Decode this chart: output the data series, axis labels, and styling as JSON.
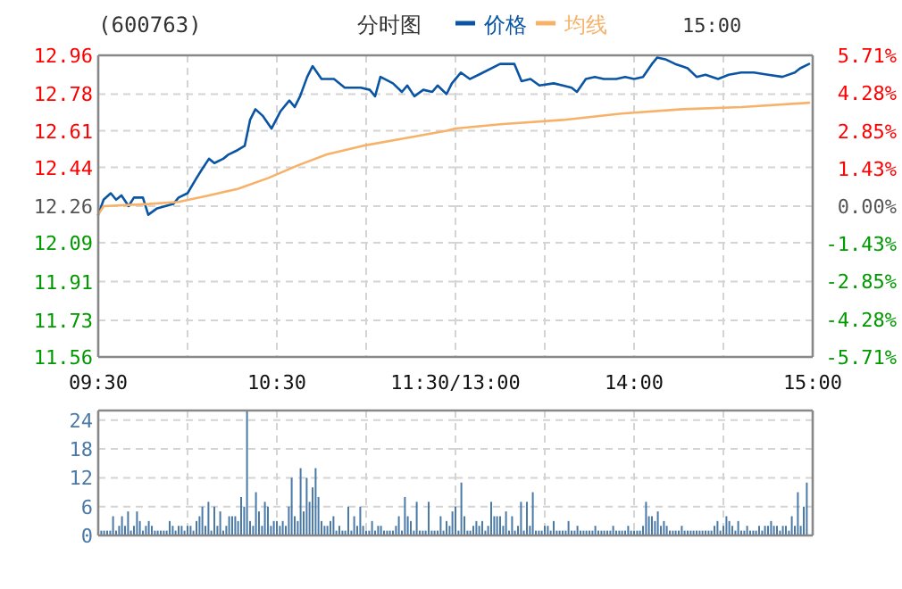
{
  "chart_data": [
    {
      "type": "line",
      "title": "(600763)",
      "subtitle": "分时图",
      "legend": "top",
      "grid": true,
      "xlim": [
        9.5,
        11.5
      ],
      "xticks": [
        {
          "value": 9.5,
          "label": "09:30"
        },
        {
          "value": 10,
          "label": null
        },
        {
          "value": 10.5,
          "label": "10:30"
        },
        {
          "value": 11,
          "label": null
        },
        {
          "value": 11.5,
          "label": "11:30/13:00"
        }
      ],
      "ylim": [
        11.56,
        12.96
      ],
      "yticks": [
        11.56,
        11.73,
        11.91,
        12.09,
        12.26,
        12.44,
        12.61,
        12.78,
        12.96
      ],
      "series": [
        {
          "name": "价格",
          "color": "#0a55a3",
          "x": [
            9.5,
            9.53,
            9.57,
            9.6,
            9.63,
            9.67,
            9.7,
            9.75,
            9.78,
            9.83,
            9.92,
            9.95,
            10,
            10.05,
            10.08,
            10.12,
            10.15,
            10.2,
            10.23,
            10.28,
            10.32,
            10.35,
            10.38,
            10.42,
            10.47,
            10.52,
            10.57,
            10.6,
            10.63,
            10.67,
            10.7,
            10.75,
            10.82,
            10.88,
            10.97,
            11.02,
            11.05,
            11.08,
            11.15,
            11.2,
            11.23,
            11.27,
            11.32,
            11.37,
            11.4,
            11.45,
            11.48,
            11.5
          ],
          "values": [
            12.22,
            12.29,
            12.32,
            12.29,
            12.31,
            12.26,
            12.3,
            12.3,
            12.22,
            12.25,
            12.27,
            12.3,
            12.32,
            12.39,
            12.43,
            12.48,
            12.46,
            12.48,
            12.5,
            12.52,
            12.54,
            12.66,
            12.71,
            12.68,
            12.62,
            12.7,
            12.75,
            12.72,
            12.77,
            12.86,
            12.91,
            12.85,
            12.85,
            12.81,
            12.81,
            12.8,
            12.77,
            12.86,
            12.83,
            12.79,
            12.82,
            12.77,
            12.8,
            12.79,
            12.82,
            12.78,
            12.83,
            12.85
          ]
        },
        {
          "name": "均线",
          "color": "#f7b26a",
          "x": [
            9.5,
            9.53,
            9.78,
            9.95,
            10.12,
            10.28,
            10.45,
            10.62,
            10.78,
            10.98,
            11.18,
            11.45,
            11.5
          ],
          "values": [
            12.22,
            12.26,
            12.27,
            12.28,
            12.31,
            12.34,
            12.39,
            12.45,
            12.5,
            12.54,
            12.57,
            12.61,
            12.62
          ]
        }
      ]
    },
    {
      "type": "line",
      "annotations": [
        "15:00"
      ],
      "grid": true,
      "tick_labels": "x",
      "xlim": [
        13,
        15
      ],
      "xticks": [
        {
          "value": 13,
          "label": null
        },
        {
          "value": 13.5,
          "label": null
        },
        {
          "value": 14,
          "label": "14:00"
        },
        {
          "value": 14.5,
          "label": null
        },
        {
          "value": 15,
          "label": "15:00"
        }
      ],
      "ylim": [
        11.56,
        12.96
      ],
      "yticks": [
        11.56,
        11.73,
        11.91,
        12.09,
        12.26,
        12.44,
        12.61,
        12.78,
        12.96
      ],
      "y2lim": [
        -5.71,
        5.71
      ],
      "y2ticks": [
        {
          "value": -5.71,
          "label": "-5.71%"
        },
        {
          "value": -4.28,
          "label": "-4.28%"
        },
        {
          "value": -2.85,
          "label": "-2.85%"
        },
        {
          "value": -1.43,
          "label": "-1.43%"
        },
        {
          "value": 0,
          "label": "0.00%"
        },
        {
          "value": 1.43,
          "label": "1.43%"
        },
        {
          "value": 2.85,
          "label": "2.85%"
        },
        {
          "value": 4.28,
          "label": "4.28%"
        },
        {
          "value": 5.71,
          "label": "5.71%"
        }
      ],
      "series": [
        {
          "color": "#0a55a3",
          "x": [
            13,
            13.03,
            13.08,
            13.13,
            13.25,
            13.27,
            13.33,
            13.37,
            13.42,
            13.47,
            13.55,
            13.6,
            13.65,
            13.68,
            13.73,
            13.78,
            13.83,
            13.9,
            13.95,
            14,
            14.05,
            14.1,
            14.13,
            14.18,
            14.23,
            14.3,
            14.35,
            14.4,
            14.47,
            14.53,
            14.6,
            14.67,
            14.75,
            14.83,
            14.9,
            14.93,
            14.98
          ],
          "values": [
            12.85,
            12.88,
            12.85,
            12.87,
            12.92,
            12.92,
            12.92,
            12.84,
            12.85,
            12.82,
            12.83,
            12.82,
            12.81,
            12.79,
            12.85,
            12.86,
            12.85,
            12.85,
            12.86,
            12.85,
            12.86,
            12.92,
            12.95,
            12.94,
            12.92,
            12.9,
            12.86,
            12.87,
            12.85,
            12.87,
            12.88,
            12.88,
            12.87,
            12.86,
            12.88,
            12.9,
            12.92
          ]
        },
        {
          "color": "#f7b26a",
          "x": [
            13,
            13.25,
            13.6,
            13.93,
            14.27,
            14.6,
            14.98
          ],
          "values": [
            12.62,
            12.64,
            12.66,
            12.69,
            12.71,
            12.72,
            12.74
          ]
        }
      ]
    },
    {
      "type": "bar",
      "grid": true,
      "tick_labels": "y",
      "xlim": [
        9.5,
        11.5
      ],
      "xticks": [
        {
          "value": 9.5,
          "label": null
        },
        {
          "value": 10,
          "label": null
        },
        {
          "value": 10.5,
          "label": null
        },
        {
          "value": 11,
          "label": null
        },
        {
          "value": 11.5,
          "label": null
        }
      ],
      "ylim": [
        0,
        26
      ],
      "yticks": [
        0,
        6,
        12,
        18,
        24
      ],
      "series": [
        {
          "color": "#4a7aa8",
          "x": [
            9.517,
            9.533,
            9.55,
            9.567,
            9.583,
            9.6,
            9.617,
            9.633,
            9.65,
            9.667,
            9.683,
            9.7,
            9.717,
            9.733,
            9.75,
            9.767,
            9.783,
            9.8,
            9.817,
            9.833,
            9.85,
            9.867,
            9.883,
            9.9,
            9.917,
            9.933,
            9.95,
            9.967,
            9.983,
            10,
            10.017,
            10.033,
            10.05,
            10.067,
            10.083,
            10.1,
            10.117,
            10.133,
            10.15,
            10.167,
            10.183,
            10.2,
            10.217,
            10.233,
            10.25,
            10.267,
            10.283,
            10.3,
            10.317,
            10.333,
            10.35,
            10.367,
            10.383,
            10.4,
            10.417,
            10.433,
            10.45,
            10.467,
            10.483,
            10.5,
            10.517,
            10.533,
            10.55,
            10.567,
            10.583,
            10.6,
            10.617,
            10.633,
            10.65,
            10.667,
            10.683,
            10.7,
            10.717,
            10.733,
            10.75,
            10.767,
            10.783,
            10.8,
            10.817,
            10.833,
            10.85,
            10.867,
            10.883,
            10.9,
            10.917,
            10.933,
            10.95,
            10.967,
            10.983,
            11,
            11.017,
            11.033,
            11.05,
            11.067,
            11.083,
            11.1,
            11.117,
            11.133,
            11.15,
            11.167,
            11.183,
            11.2,
            11.217,
            11.233,
            11.25,
            11.267,
            11.283,
            11.3,
            11.317,
            11.333,
            11.35,
            11.367,
            11.383,
            11.4,
            11.417,
            11.433,
            11.45,
            11.467,
            11.483,
            11.5
          ],
          "values": [
            1,
            1,
            1,
            1,
            4,
            1,
            2,
            4,
            2,
            5,
            1,
            2,
            5,
            3,
            1,
            2,
            3,
            2,
            1,
            1,
            1,
            1,
            1,
            3,
            2,
            1,
            2,
            2,
            1,
            2,
            2,
            1,
            3,
            4,
            6,
            2,
            7,
            1,
            6,
            2,
            5,
            1,
            2,
            4,
            4,
            4,
            3,
            8,
            6,
            26,
            3,
            2,
            9,
            5,
            2,
            7,
            6,
            2,
            3,
            3,
            2,
            3,
            2,
            6,
            12,
            4,
            3,
            14,
            5,
            12,
            7,
            10,
            14,
            8,
            3,
            2,
            2,
            3,
            4,
            1,
            2,
            1,
            1,
            6,
            1,
            4,
            2,
            6,
            2,
            1,
            1,
            3,
            1,
            2,
            2,
            1,
            1,
            1,
            1,
            2,
            4,
            1,
            8,
            4,
            3,
            1,
            7,
            1,
            1,
            1,
            7,
            1,
            1,
            1,
            4,
            1,
            3,
            2,
            5,
            6
          ]
        }
      ]
    },
    {
      "type": "bar",
      "grid": true,
      "tick_labels": false,
      "xlim": [
        13,
        15
      ],
      "xticks": [
        {
          "value": 13,
          "label": null
        },
        {
          "value": 13.5,
          "label": null
        },
        {
          "value": 14,
          "label": null
        },
        {
          "value": 14.5,
          "label": null
        },
        {
          "value": 15,
          "label": null
        }
      ],
      "ylim": [
        0,
        26
      ],
      "yticks": [
        0,
        6,
        12,
        18,
        24
      ],
      "series": [
        {
          "color": "#4a7aa8",
          "x": [
            13.017,
            13.033,
            13.05,
            13.067,
            13.083,
            13.1,
            13.117,
            13.133,
            13.15,
            13.167,
            13.183,
            13.2,
            13.217,
            13.233,
            13.25,
            13.267,
            13.283,
            13.3,
            13.317,
            13.333,
            13.35,
            13.367,
            13.383,
            13.4,
            13.417,
            13.433,
            13.45,
            13.467,
            13.483,
            13.5,
            13.517,
            13.533,
            13.55,
            13.567,
            13.583,
            13.6,
            13.617,
            13.633,
            13.65,
            13.667,
            13.683,
            13.7,
            13.717,
            13.733,
            13.75,
            13.767,
            13.783,
            13.8,
            13.817,
            13.833,
            13.85,
            13.867,
            13.883,
            13.9,
            13.917,
            13.933,
            13.95,
            13.967,
            13.983,
            14,
            14.017,
            14.033,
            14.05,
            14.067,
            14.083,
            14.1,
            14.117,
            14.133,
            14.15,
            14.167,
            14.183,
            14.2,
            14.217,
            14.233,
            14.25,
            14.267,
            14.283,
            14.3,
            14.317,
            14.333,
            14.35,
            14.367,
            14.383,
            14.4,
            14.417,
            14.433,
            14.45,
            14.467,
            14.483,
            14.5,
            14.517,
            14.533,
            14.55,
            14.567,
            14.583,
            14.6,
            14.617,
            14.633,
            14.65,
            14.667,
            14.683,
            14.7,
            14.717,
            14.733,
            14.75,
            14.767,
            14.783,
            14.8,
            14.817,
            14.833,
            14.85,
            14.867,
            14.883,
            14.9,
            14.917,
            14.933,
            14.95,
            14.967
          ],
          "values": [
            1,
            11,
            4,
            1,
            1,
            2,
            3,
            2,
            3,
            1,
            2,
            7,
            4,
            4,
            4,
            2,
            5,
            1,
            4,
            1,
            2,
            7,
            1,
            7,
            2,
            9,
            1,
            1,
            1,
            2,
            2,
            1,
            3,
            1,
            1,
            1,
            1,
            3,
            1,
            1,
            2,
            1,
            1,
            1,
            1,
            1,
            2,
            1,
            1,
            1,
            1,
            1,
            2,
            1,
            1,
            1,
            1,
            2,
            1,
            1,
            1,
            1,
            2,
            7,
            4,
            4,
            3,
            5,
            2,
            3,
            2,
            1,
            1,
            1,
            1,
            2,
            1,
            1,
            1,
            1,
            1,
            1,
            1,
            1,
            1,
            1,
            2,
            3,
            1,
            2,
            4,
            3,
            2,
            1,
            3,
            1,
            1,
            2,
            1,
            1,
            1,
            2,
            1,
            2,
            2,
            3,
            2,
            2,
            1,
            2,
            2,
            1,
            4,
            2,
            9,
            2,
            6,
            11
          ]
        }
      ]
    }
  ]
}
